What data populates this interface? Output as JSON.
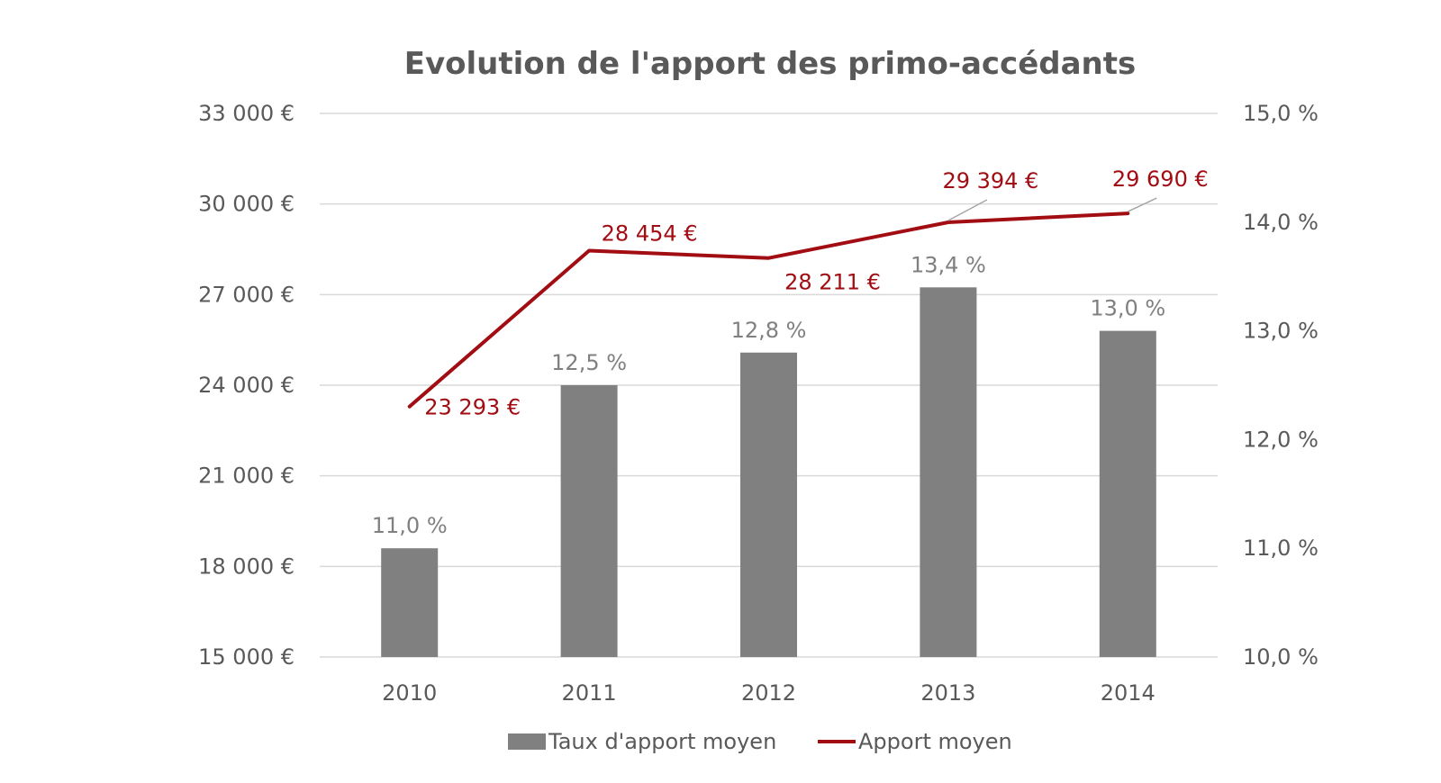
{
  "chart_data": {
    "type": "bar",
    "title": "Evolution de l'apport des primo-accédants",
    "categories": [
      "2010",
      "2011",
      "2012",
      "2013",
      "2014"
    ],
    "series": [
      {
        "name": "Taux d'apport moyen",
        "type": "bar",
        "axis": "right",
        "values": [
          11.0,
          12.5,
          12.8,
          13.4,
          13.0
        ],
        "labels": [
          "11,0 %",
          "12,5 %",
          "12,8 %",
          "13,4 %",
          "13,0 %"
        ],
        "color": "#808080"
      },
      {
        "name": "Apport moyen",
        "type": "line",
        "axis": "left",
        "values": [
          23293,
          28454,
          28211,
          29394,
          29690
        ],
        "labels": [
          "23 293 €",
          "28 454 €",
          "28 211 €",
          "29 394 €",
          "29 690 €"
        ],
        "color": "#a10d13"
      }
    ],
    "y_left": {
      "min": 15000,
      "max": 33000,
      "ticks": [
        15000,
        18000,
        21000,
        24000,
        27000,
        30000,
        33000
      ],
      "tick_labels": [
        "15 000 €",
        "18 000 €",
        "21 000 €",
        "24 000 €",
        "27 000 €",
        "30 000 €",
        "33 000 €"
      ]
    },
    "y_right": {
      "min": 10,
      "max": 15,
      "ticks": [
        10,
        11,
        12,
        13,
        14,
        15
      ],
      "tick_labels": [
        "10,0 %",
        "11,0 %",
        "12,0 %",
        "13,0 %",
        "14,0 %",
        "15,0 %"
      ]
    },
    "grid": true,
    "legend_position": "bottom",
    "gridline_color": "#d9d9d9"
  }
}
